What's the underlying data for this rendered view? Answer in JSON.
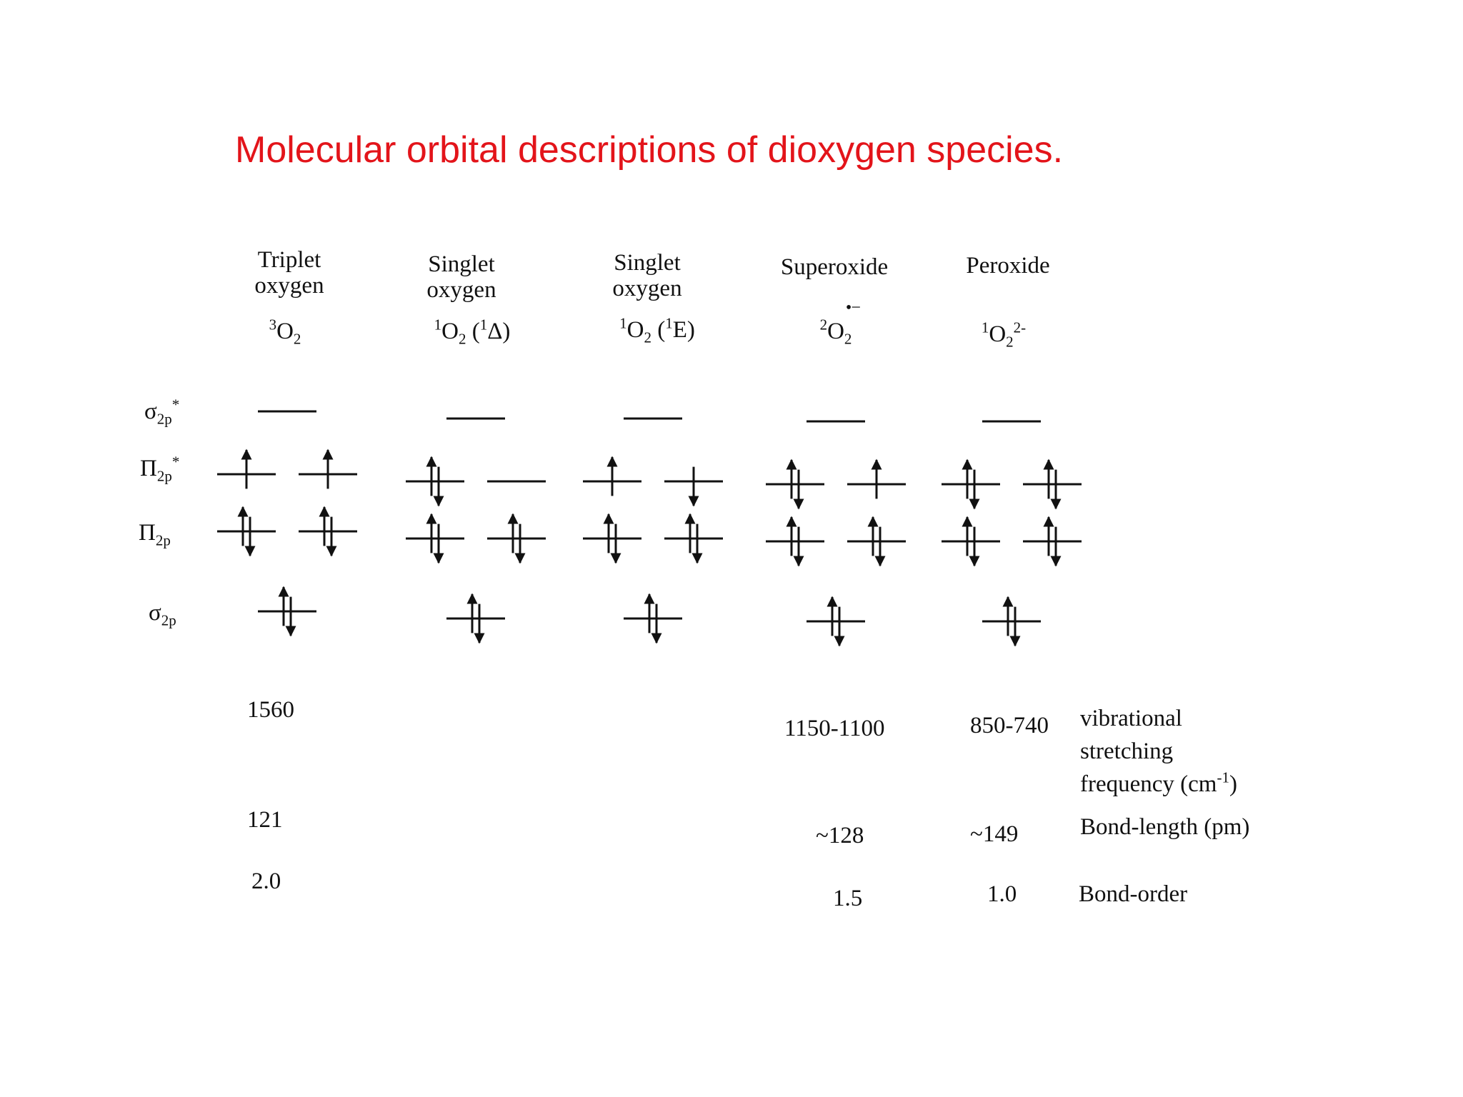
{
  "title": "Molecular orbital descriptions of dioxygen species.",
  "orbital_labels": {
    "sigma_star": {
      "sym": "σ",
      "sub": "2p",
      "sup": "*"
    },
    "pi_star": {
      "sym": "Π",
      "sub": "2p",
      "sup": "*"
    },
    "pi": {
      "sym": "Π",
      "sub": "2p"
    },
    "sigma": {
      "sym": "σ",
      "sub": "2p"
    }
  },
  "species": [
    {
      "name1": "Triplet",
      "name2": "oxygen",
      "f_sup": "3",
      "f_base": "O",
      "f_sub": "2",
      "f_tail": "",
      "config": {
        "sigma_star": [
          0
        ],
        "pi_star": [
          1,
          1
        ],
        "pi": [
          2,
          2
        ],
        "sigma": [
          2
        ]
      },
      "pi_star_spins": [
        "up",
        "up"
      ]
    },
    {
      "name1": "Singlet",
      "name2": "oxygen",
      "f_sup": "1",
      "f_base": "O",
      "f_sub": "2",
      "f_tail": " (",
      "f_sup2": "1",
      "f_tail2": "Δ)",
      "config": {
        "sigma_star": [
          0
        ],
        "pi_star": [
          2,
          0
        ],
        "pi": [
          2,
          2
        ],
        "sigma": [
          2
        ]
      },
      "pi_star_spins": [
        "pair",
        "none"
      ]
    },
    {
      "name1": "Singlet",
      "name2": "oxygen",
      "f_sup": "1",
      "f_base": "O",
      "f_sub": "2",
      "f_tail": " (",
      "f_sup2": "1",
      "f_tail2": "E)",
      "config": {
        "sigma_star": [
          0
        ],
        "pi_star": [
          1,
          1
        ],
        "pi": [
          2,
          2
        ],
        "sigma": [
          2
        ]
      },
      "pi_star_spins": [
        "up",
        "down"
      ]
    },
    {
      "name1": "Superoxide",
      "f_sup": "2",
      "f_base": "O",
      "f_sub": "2",
      "f_rad": "•−",
      "config": {
        "sigma_star": [
          0
        ],
        "pi_star": [
          2,
          1
        ],
        "pi": [
          2,
          2
        ],
        "sigma": [
          2
        ]
      },
      "pi_star_spins": [
        "pair",
        "up"
      ]
    },
    {
      "name1": "Peroxide",
      "f_sup": "1",
      "f_base": "O",
      "f_sub": "2",
      "f_sup3": "2-",
      "config": {
        "sigma_star": [
          0
        ],
        "pi_star": [
          2,
          2
        ],
        "pi": [
          2,
          2
        ],
        "sigma": [
          2
        ]
      },
      "pi_star_spins": [
        "pair",
        "pair"
      ]
    }
  ],
  "properties": {
    "vibrational": {
      "triplet": "1560",
      "superoxide": "1150-1100",
      "peroxide": "850-740",
      "label1": "vibrational",
      "label2": "stretching",
      "label3": "frequency (cm",
      "label3_sup": "-1",
      "label3_end": ")"
    },
    "bond_length": {
      "triplet": "121",
      "superoxide": "~128",
      "peroxide": "~149",
      "label": "Bond-length (pm)"
    },
    "bond_order": {
      "triplet": "2.0",
      "superoxide": "1.5",
      "peroxide": "1.0",
      "label": "Bond-order"
    }
  }
}
